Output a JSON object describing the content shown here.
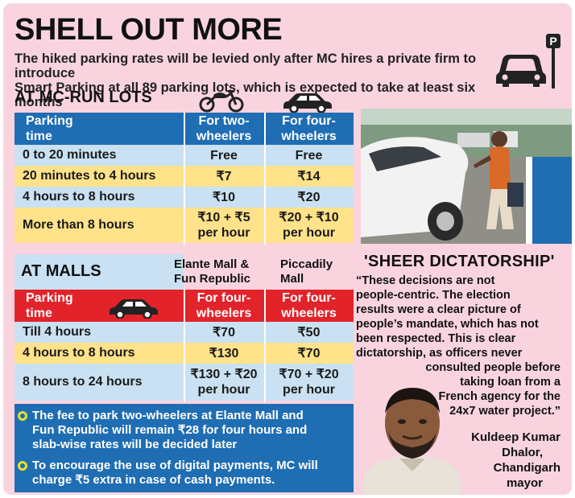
{
  "header": {
    "title": "SHELL OUT MORE",
    "subtitle_line1": "The hiked parking rates will be levied only after MC hires a private firm to introduce",
    "subtitle_line2": "Smart Parking at all 89 parking lots, which is expected to take at least six months",
    "icon": "car-parking-icon",
    "parking_sign": "P"
  },
  "mc_lots": {
    "title": "AT MC-RUN LOTS",
    "header": {
      "col0_line1": "Parking",
      "col0_line2": "time",
      "col1_line1": "For two-",
      "col1_line2": "wheelers",
      "col2_line1": "For four-",
      "col2_line2": "wheelers"
    },
    "rows": [
      {
        "time": "0 to 20 minutes",
        "two": "Free",
        "four": "Free"
      },
      {
        "time": "20 minutes to 4 hours",
        "two": "₹7",
        "four": "₹14"
      },
      {
        "time": "4 hours to 8 hours",
        "two": "₹10",
        "four": "₹20"
      },
      {
        "time": "More than 8 hours",
        "two_line1": "₹10 + ₹5",
        "two_line2": "per hour",
        "four_line1": "₹20 + ₹10",
        "four_line2": "per hour"
      }
    ]
  },
  "malls": {
    "title": "AT MALLS",
    "mall1_line1": "Elante Mall &",
    "mall1_line2": "Fun Republic",
    "mall2_line1": "Piccadily",
    "mall2_line2": "Mall",
    "header": {
      "col0_line1": "Parking",
      "col0_line2": "time",
      "col1_line1": "For four-",
      "col1_line2": "wheelers",
      "col2_line1": "For four-",
      "col2_line2": "wheelers"
    },
    "rows": [
      {
        "time": "Till 4 hours",
        "elante": "₹70",
        "piccadily": "₹50"
      },
      {
        "time": "4 hours to 8 hours",
        "elante": "₹130",
        "piccadily": "₹70"
      },
      {
        "time": "8 hours to 24 hours",
        "elante_line1": "₹130 + ₹20",
        "elante_line2": "per hour",
        "piccadily_line1": "₹70 + ₹20",
        "piccadily_line2": "per hour"
      }
    ]
  },
  "notes": [
    {
      "line1": "The fee to park two-wheelers at Elante Mall and",
      "line2": "Fun Republic will remain ₹28 for four hours and",
      "line3": "slab-wise rates will be decided later"
    },
    {
      "line1": "To encourage the use of digital payments, MC will",
      "line2": "charge ₹5 extra in case of cash payments."
    }
  ],
  "quote": {
    "title": "'SHEER DICTATORSHIP'",
    "lines": [
      "“These decisions are not",
      "people-centric. The election",
      "results were a clear picture of",
      "people’s mandate, which has not",
      "been respected. This is clear",
      "dictatorship, as officers never",
      "consulted people before",
      "taking loan from a",
      "French agency for the",
      "24x7 water project.”"
    ],
    "name_line1": "Kuldeep Kumar",
    "name_line2": "Dhalor,",
    "role_line1": "Chandigarh",
    "role_line2": "mayor"
  },
  "colors": {
    "background": "#f9d4df",
    "blue": "#1f6db3",
    "red": "#e2232a",
    "light_blue": "#c9e1f2",
    "yellow": "#ffe28a",
    "bullet": "#e7e12a"
  }
}
